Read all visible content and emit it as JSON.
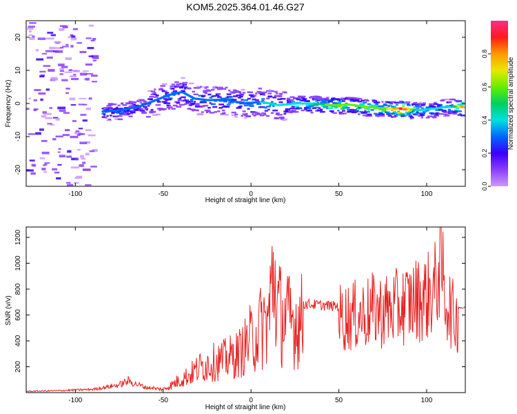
{
  "title": "KOM5.2025.364.01.46.G27",
  "chart_data": [
    {
      "type": "heatmap",
      "title": "KOM5.2025.364.01.46.G27",
      "xlabel": "Height of straight line (km)",
      "ylabel": "Frequency (Hz)",
      "xlim": [
        -128,
        122
      ],
      "ylim": [
        -25,
        25
      ],
      "xticks": [
        -100,
        -50,
        0,
        50,
        100
      ],
      "yticks": [
        -20,
        -10,
        0,
        10,
        20
      ],
      "colorbar": {
        "label": "Normalized spectral amplitude",
        "range": [
          0,
          1
        ],
        "ticks": [
          "0.0",
          "0.2",
          "0.4",
          "0.6",
          "0.8"
        ],
        "colors": [
          "#cc99ff",
          "#8b3dff",
          "#3a00ff",
          "#0066ff",
          "#00e0e0",
          "#00d060",
          "#66ee00",
          "#e8e800",
          "#ff9900",
          "#ff1a1a",
          "#ff2d8a"
        ]
      },
      "ridge": {
        "x": [
          -85,
          -75,
          -65,
          -55,
          -48,
          -40,
          -33,
          -25,
          -15,
          -5,
          5,
          15,
          25,
          35,
          45,
          55,
          65,
          75,
          85,
          95,
          105,
          110,
          115,
          120
        ],
        "freq": [
          -2.5,
          -2.0,
          -1.0,
          1.0,
          2.5,
          3.5,
          1.5,
          1.0,
          1.2,
          0.0,
          0.5,
          -0.5,
          0.0,
          0.0,
          -0.5,
          -0.3,
          -1.0,
          -1.5,
          -1.5,
          -2.0,
          -1.5,
          -1.0,
          -1.0,
          -1.0
        ],
        "peak_amplitude": [
          0.3,
          0.3,
          0.25,
          0.25,
          0.3,
          0.3,
          0.3,
          0.3,
          0.35,
          0.3,
          0.35,
          0.35,
          0.4,
          0.45,
          0.6,
          0.55,
          0.55,
          0.6,
          0.9,
          0.4,
          0.35,
          0.35,
          0.5,
          0.8
        ]
      }
    },
    {
      "type": "line",
      "title": "",
      "xlabel": "Height of straight line (km)",
      "ylabel": "SNR (v/v)",
      "xlim": [
        -128,
        122
      ],
      "ylim": [
        0,
        1280
      ],
      "xticks": [
        -100,
        -50,
        0,
        50,
        100
      ],
      "yticks": [
        200,
        400,
        600,
        800,
        1000,
        1200
      ],
      "series": [
        {
          "name": "SNR",
          "color": "#e82020",
          "x": [
            -128,
            -110,
            -90,
            -75,
            -70,
            -60,
            -50,
            -45,
            -40,
            -35,
            -30,
            -25,
            -20,
            -15,
            -10,
            -5,
            0,
            5,
            10,
            13,
            15,
            20,
            25,
            30,
            40,
            50,
            60,
            65,
            70,
            75,
            80,
            85,
            90,
            95,
            100,
            105,
            108,
            110,
            115,
            118,
            122
          ],
          "values": [
            10,
            15,
            25,
            60,
            90,
            40,
            30,
            70,
            120,
            160,
            220,
            260,
            280,
            300,
            330,
            380,
            500,
            620,
            700,
            1200,
            800,
            700,
            680,
            700,
            690,
            680,
            700,
            720,
            750,
            740,
            760,
            780,
            820,
            850,
            870,
            950,
            1280,
            900,
            700,
            660,
            655
          ]
        }
      ]
    }
  ]
}
